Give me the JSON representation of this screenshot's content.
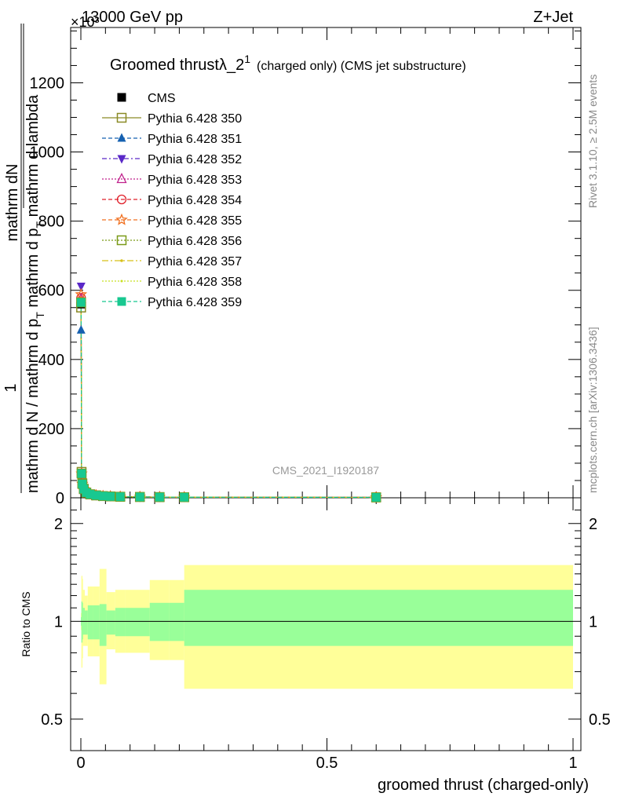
{
  "header": {
    "energy": "13000 GeV pp",
    "process": "Z+Jet",
    "exponent": "×10³"
  },
  "side_labels": {
    "rivet": "Rivet 3.1.10, ≥ 2.5M events",
    "mcplots": "mcplots.cern.ch [arXiv:1306.3436]"
  },
  "watermark": "CMS_2021_I1920187",
  "main_title": {
    "text": "Groomed thrust",
    "lambda": "λ_2",
    "sup": "1",
    "suffix": "(charged only) (CMS jet substructure)"
  },
  "ylabel_parts": {
    "num_one": "1",
    "num_frac": "mathrm dN",
    "den_frac_top": "mathrm d N / mathrm d p",
    "den_frac_sub": "T",
    "den_frac_rest": " mathrm d p",
    "den_frac_sub2": "T",
    "den_frac_tail": " mathrm d lambda"
  },
  "ratio_ylabel": "Ratio to CMS",
  "xlabel": "groomed thrust (charged-only)",
  "main_yticks": [
    "0",
    "200",
    "400",
    "600",
    "800",
    "1000",
    "1200"
  ],
  "ratio_yticks": [
    "0.5",
    "1",
    "2"
  ],
  "xticks": [
    "0",
    "0.5",
    "1"
  ],
  "chart_data": {
    "type": "line",
    "x_range": [
      0,
      1
    ],
    "main_ylim": [
      0,
      1360
    ],
    "ratio_ylim": [
      0.4,
      2.4
    ],
    "ratio_log": true,
    "x": [
      0.0005,
      0.0015,
      0.003,
      0.006,
      0.011,
      0.019,
      0.031,
      0.045,
      0.06,
      0.08,
      0.12,
      0.16,
      0.21,
      0.6
    ],
    "series": [
      {
        "name": "CMS",
        "color": "#000000",
        "marker": "square-filled",
        "dash": "",
        "values": [
          560,
          70,
          40,
          25,
          15,
          10,
          7,
          5,
          4,
          3,
          2.4,
          2,
          1.7,
          1.2
        ]
      },
      {
        "name": "Pythia 6.428 350",
        "color": "#8a8a26",
        "marker": "square-open",
        "dash": "",
        "values": [
          550,
          75,
          42,
          26,
          15,
          10,
          7,
          5,
          4,
          3,
          2.4,
          2,
          1.7,
          1.2
        ]
      },
      {
        "name": "Pythia 6.428 351",
        "color": "#1560b0",
        "marker": "triangle-up",
        "dash": "5,3",
        "values": [
          485,
          72,
          41,
          25,
          15,
          10,
          7,
          5,
          4,
          3,
          2.4,
          2,
          1.7,
          1.2
        ]
      },
      {
        "name": "Pythia 6.428 352",
        "color": "#5a28c8",
        "marker": "triangle-down",
        "dash": "6,3,2,3",
        "values": [
          612,
          68,
          40,
          25,
          15,
          10,
          7,
          5,
          4,
          3,
          2.4,
          2,
          1.7,
          1.2
        ]
      },
      {
        "name": "Pythia 6.428 353",
        "color": "#c0208c",
        "marker": "triangle-open",
        "dash": "2,2",
        "values": [
          575,
          70,
          40,
          25,
          15,
          10,
          7,
          5,
          4,
          3,
          2.4,
          2,
          1.7,
          1.2
        ]
      },
      {
        "name": "Pythia 6.428 354",
        "color": "#e0202a",
        "marker": "circle-open",
        "dash": "5,3",
        "values": [
          578,
          70,
          40,
          25,
          15,
          10,
          7,
          5,
          4,
          3,
          2.4,
          2,
          1.7,
          1.2
        ]
      },
      {
        "name": "Pythia 6.428 355",
        "color": "#f07020",
        "marker": "star-open",
        "dash": "5,3",
        "values": [
          588,
          70,
          40,
          25,
          15,
          10,
          7,
          5,
          4,
          3,
          2.4,
          2,
          1.7,
          1.2
        ]
      },
      {
        "name": "Pythia 6.428 356",
        "color": "#7a9a18",
        "marker": "square-open",
        "dash": "2,2",
        "values": [
          565,
          70,
          40,
          25,
          15,
          10,
          7,
          5,
          4,
          3,
          2.4,
          2,
          1.7,
          1.2
        ]
      },
      {
        "name": "Pythia 6.428 357",
        "color": "#d8c018",
        "marker": "dash-dot",
        "dash": "8,3,2,3",
        "values": [
          570,
          70,
          40,
          25,
          15,
          10,
          7,
          5,
          4,
          3,
          2.4,
          2,
          1.7,
          1.2
        ]
      },
      {
        "name": "Pythia 6.428 358",
        "color": "#c8e020",
        "marker": "dot",
        "dash": "2,2",
        "values": [
          568,
          70,
          40,
          25,
          15,
          10,
          7,
          5,
          4,
          3,
          2.4,
          2,
          1.7,
          1.2
        ]
      },
      {
        "name": "Pythia 6.428 359",
        "color": "#18c890",
        "marker": "square-filled",
        "dash": "5,3",
        "values": [
          565,
          70,
          40,
          25,
          15,
          10,
          7,
          5,
          4,
          3,
          2.4,
          2,
          1.7,
          1.2
        ]
      }
    ],
    "ratio_bands": {
      "edges": [
        0,
        0.001,
        0.002,
        0.004,
        0.008,
        0.014,
        0.024,
        0.038,
        0.052,
        0.07,
        0.09,
        0.14,
        0.18,
        0.21,
        1.0
      ],
      "yellow_low": [
        0.94,
        0.72,
        0.77,
        0.84,
        0.84,
        0.78,
        0.78,
        0.64,
        0.82,
        0.8,
        0.8,
        0.76,
        0.76,
        0.62
      ],
      "yellow_high": [
        1.06,
        1.38,
        1.35,
        1.25,
        1.2,
        1.28,
        1.28,
        1.45,
        1.23,
        1.25,
        1.25,
        1.34,
        1.34,
        1.49
      ],
      "green_low": [
        0.97,
        0.86,
        0.88,
        0.91,
        0.91,
        0.88,
        0.88,
        0.84,
        0.91,
        0.9,
        0.9,
        0.87,
        0.87,
        0.84
      ],
      "green_high": [
        1.03,
        1.15,
        1.14,
        1.1,
        1.08,
        1.12,
        1.12,
        1.13,
        1.08,
        1.1,
        1.1,
        1.14,
        1.14,
        1.25
      ]
    },
    "colors": {
      "yellow_band": "#ffff99",
      "green_band": "#99ff99"
    }
  }
}
